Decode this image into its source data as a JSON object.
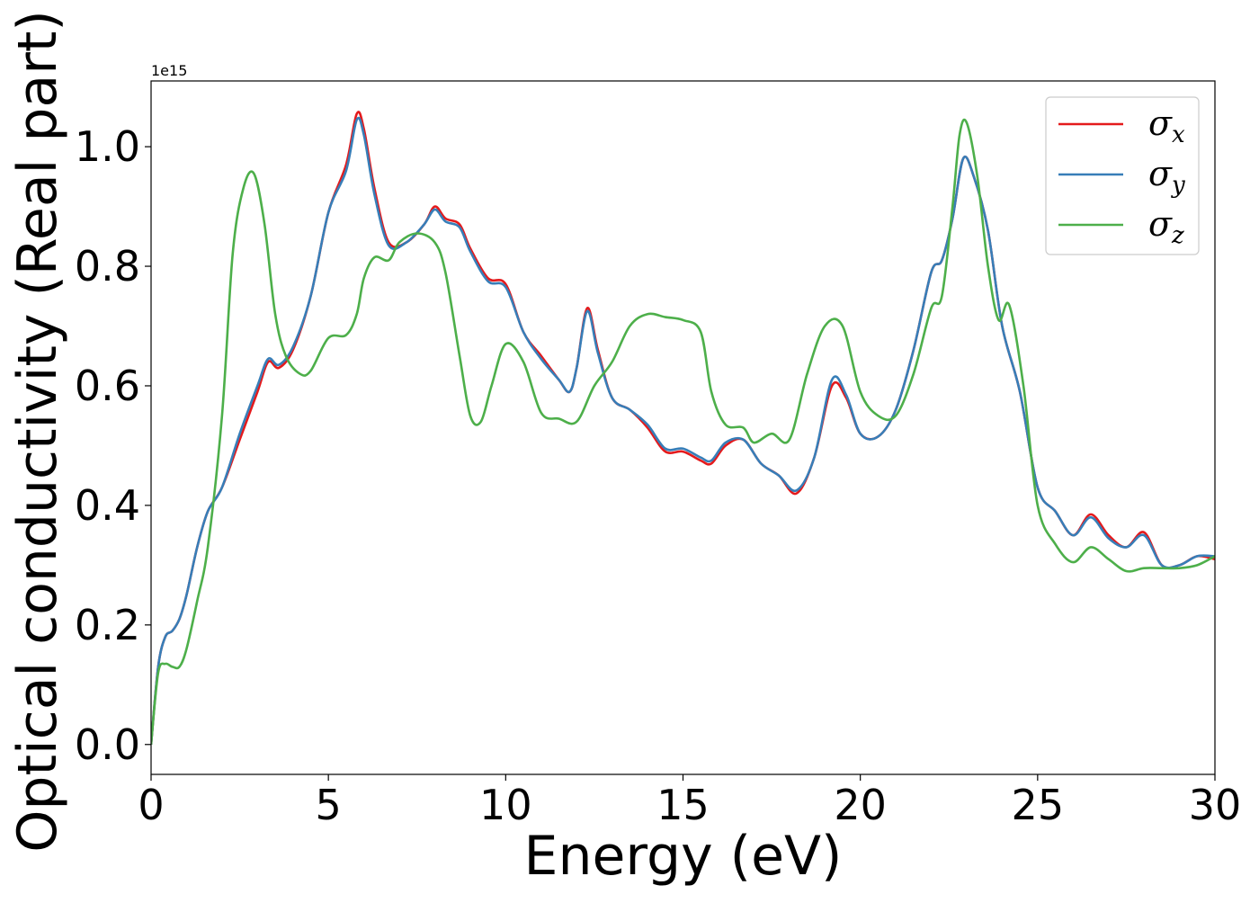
{
  "chart_data": {
    "type": "line",
    "xlabel": "Energy (eV)",
    "ylabel": "Optical conductivity (Real part)",
    "y_offset_label": "1e15",
    "y_scale": 1000000000000000.0,
    "xlim": [
      0,
      30
    ],
    "ylim": [
      -0.05,
      1.11
    ],
    "x_ticks": [
      0,
      5,
      10,
      15,
      20,
      25,
      30
    ],
    "x_tick_labels": [
      "0",
      "5",
      "10",
      "15",
      "20",
      "25",
      "30"
    ],
    "y_ticks": [
      0.0,
      0.2,
      0.4,
      0.6,
      0.8,
      1.0
    ],
    "y_tick_labels": [
      "0.0",
      "0.2",
      "0.4",
      "0.6",
      "0.8",
      "1.0"
    ],
    "grid": false,
    "legend_position": "top-right",
    "colors": {
      "sigma_x": "#e41a1c",
      "sigma_y": "#377eb8",
      "sigma_z": "#4daf4a"
    },
    "series": [
      {
        "name": "σx",
        "legend_symbol": "σ",
        "legend_sub": "x",
        "color": "#e41a1c",
        "x": [
          0,
          0.2,
          0.4,
          0.6,
          0.8,
          1.0,
          1.3,
          1.6,
          2.0,
          2.5,
          3.0,
          3.3,
          3.6,
          4.0,
          4.5,
          5.0,
          5.5,
          5.8,
          6.0,
          6.3,
          6.7,
          7.2,
          7.7,
          8.0,
          8.3,
          8.7,
          9.0,
          9.5,
          10.0,
          10.5,
          11.0,
          11.5,
          11.8,
          12.0,
          12.3,
          12.6,
          13.0,
          13.5,
          14.0,
          14.5,
          15.0,
          15.5,
          15.8,
          16.2,
          16.7,
          17.2,
          17.7,
          18.2,
          18.7,
          19.2,
          19.6,
          20.0,
          20.5,
          21.0,
          21.5,
          22.0,
          22.3,
          22.6,
          22.9,
          23.2,
          23.6,
          24.0,
          24.5,
          25.0,
          25.5,
          26.0,
          26.5,
          27.0,
          27.5,
          28.0,
          28.5,
          29.0,
          29.5,
          30.0
        ],
        "y": [
          0.0,
          0.13,
          0.18,
          0.19,
          0.21,
          0.25,
          0.33,
          0.39,
          0.43,
          0.51,
          0.59,
          0.64,
          0.63,
          0.66,
          0.75,
          0.89,
          0.97,
          1.055,
          1.03,
          0.93,
          0.84,
          0.84,
          0.87,
          0.9,
          0.88,
          0.87,
          0.83,
          0.78,
          0.77,
          0.69,
          0.65,
          0.61,
          0.59,
          0.63,
          0.73,
          0.66,
          0.58,
          0.56,
          0.53,
          0.49,
          0.49,
          0.475,
          0.47,
          0.5,
          0.51,
          0.47,
          0.45,
          0.42,
          0.48,
          0.6,
          0.58,
          0.52,
          0.515,
          0.56,
          0.66,
          0.79,
          0.81,
          0.88,
          0.98,
          0.95,
          0.86,
          0.7,
          0.59,
          0.43,
          0.39,
          0.35,
          0.385,
          0.35,
          0.33,
          0.355,
          0.3,
          0.3,
          0.315,
          0.31
        ]
      },
      {
        "name": "σy",
        "legend_symbol": "σ",
        "legend_sub": "y",
        "color": "#377eb8",
        "x": [
          0,
          0.2,
          0.4,
          0.6,
          0.8,
          1.0,
          1.3,
          1.6,
          2.0,
          2.5,
          3.0,
          3.3,
          3.6,
          4.0,
          4.5,
          5.0,
          5.5,
          5.8,
          6.0,
          6.3,
          6.7,
          7.2,
          7.7,
          8.0,
          8.3,
          8.7,
          9.0,
          9.5,
          10.0,
          10.5,
          11.0,
          11.5,
          11.8,
          12.0,
          12.3,
          12.6,
          13.0,
          13.5,
          14.0,
          14.5,
          15.0,
          15.5,
          15.8,
          16.2,
          16.7,
          17.2,
          17.7,
          18.2,
          18.7,
          19.2,
          19.6,
          20.0,
          20.5,
          21.0,
          21.5,
          22.0,
          22.3,
          22.6,
          22.9,
          23.2,
          23.6,
          24.0,
          24.5,
          25.0,
          25.5,
          26.0,
          26.5,
          27.0,
          27.5,
          28.0,
          28.5,
          29.0,
          29.5,
          30.0
        ],
        "y": [
          0.0,
          0.13,
          0.18,
          0.19,
          0.21,
          0.25,
          0.33,
          0.39,
          0.43,
          0.52,
          0.6,
          0.645,
          0.635,
          0.665,
          0.75,
          0.89,
          0.96,
          1.045,
          1.02,
          0.92,
          0.835,
          0.84,
          0.87,
          0.895,
          0.875,
          0.865,
          0.825,
          0.775,
          0.765,
          0.69,
          0.645,
          0.61,
          0.59,
          0.63,
          0.725,
          0.655,
          0.58,
          0.56,
          0.535,
          0.495,
          0.495,
          0.48,
          0.475,
          0.505,
          0.51,
          0.47,
          0.45,
          0.425,
          0.48,
          0.61,
          0.585,
          0.52,
          0.515,
          0.56,
          0.66,
          0.79,
          0.81,
          0.88,
          0.98,
          0.95,
          0.86,
          0.7,
          0.59,
          0.43,
          0.39,
          0.35,
          0.38,
          0.345,
          0.33,
          0.35,
          0.3,
          0.3,
          0.315,
          0.315
        ]
      },
      {
        "name": "σz",
        "legend_symbol": "σ",
        "legend_sub": "z",
        "color": "#4daf4a",
        "x": [
          0,
          0.2,
          0.4,
          0.6,
          0.8,
          1.0,
          1.3,
          1.6,
          2.0,
          2.3,
          2.6,
          2.9,
          3.2,
          3.5,
          3.8,
          4.2,
          4.5,
          5.0,
          5.5,
          5.8,
          6.0,
          6.3,
          6.7,
          7.0,
          7.5,
          8.0,
          8.3,
          8.7,
          9.0,
          9.3,
          9.6,
          10.0,
          10.5,
          11.0,
          11.5,
          12.0,
          12.5,
          13.0,
          13.5,
          14.0,
          14.5,
          15.0,
          15.5,
          15.8,
          16.2,
          16.7,
          17.0,
          17.5,
          18.0,
          18.5,
          19.0,
          19.5,
          20.0,
          20.5,
          21.0,
          21.5,
          22.0,
          22.3,
          22.6,
          22.8,
          23.0,
          23.3,
          23.6,
          23.9,
          24.2,
          24.6,
          25.0,
          25.5,
          26.0,
          26.5,
          27.0,
          27.5,
          28.0,
          28.5,
          29.0,
          29.5,
          30.0
        ],
        "y": [
          0.0,
          0.12,
          0.135,
          0.13,
          0.13,
          0.16,
          0.24,
          0.33,
          0.55,
          0.82,
          0.93,
          0.955,
          0.87,
          0.72,
          0.65,
          0.62,
          0.625,
          0.68,
          0.685,
          0.72,
          0.78,
          0.815,
          0.81,
          0.84,
          0.855,
          0.84,
          0.79,
          0.65,
          0.55,
          0.54,
          0.6,
          0.67,
          0.64,
          0.555,
          0.545,
          0.54,
          0.6,
          0.64,
          0.7,
          0.72,
          0.715,
          0.71,
          0.69,
          0.59,
          0.535,
          0.53,
          0.505,
          0.52,
          0.51,
          0.62,
          0.7,
          0.7,
          0.59,
          0.55,
          0.55,
          0.62,
          0.73,
          0.75,
          0.9,
          1.02,
          1.04,
          0.95,
          0.8,
          0.71,
          0.735,
          0.6,
          0.4,
          0.335,
          0.305,
          0.33,
          0.31,
          0.29,
          0.295,
          0.295,
          0.295,
          0.3,
          0.315
        ]
      }
    ]
  }
}
